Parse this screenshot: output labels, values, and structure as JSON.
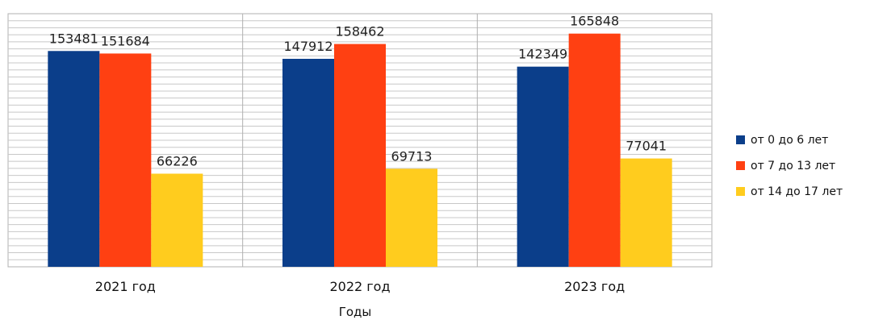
{
  "chart_data": {
    "type": "bar",
    "categories": [
      "2021 год",
      "2022 год",
      "2023 год"
    ],
    "series": [
      {
        "name": "от 0 до 6 лет",
        "values": [
          153481,
          147912,
          142349
        ],
        "color": "#0b3e8a"
      },
      {
        "name": "от 7 до 13 лет",
        "values": [
          151684,
          158462,
          165848
        ],
        "color": "#ff4012"
      },
      {
        "name": "от 14 до 17 лет",
        "values": [
          66226,
          69713,
          77041
        ],
        "color": "#ffcc1e"
      }
    ],
    "value_labels": [
      [
        "153481",
        "151684",
        "66226"
      ],
      [
        "147912",
        "158462",
        "69713"
      ],
      [
        "142349",
        "165848",
        "77041"
      ]
    ],
    "xlabel": "Годы",
    "ylabel": "",
    "ylim": [
      0,
      180000
    ],
    "y_ticks_shown": false,
    "grid": true,
    "legend_position": "right"
  }
}
